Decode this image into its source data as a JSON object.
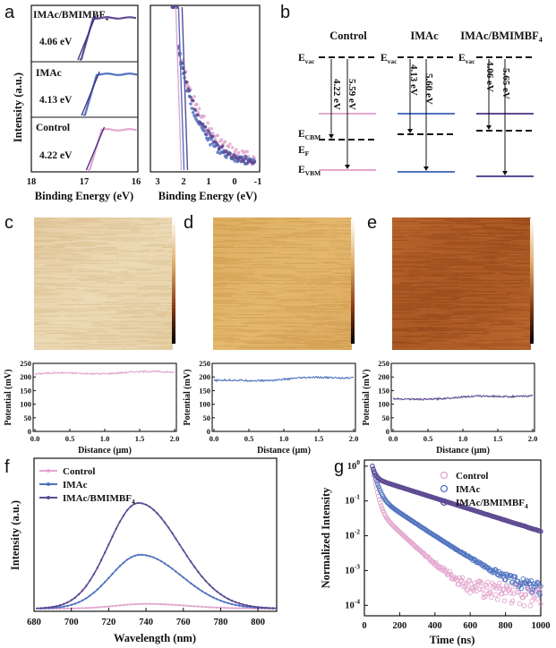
{
  "panels": {
    "a": "a",
    "b": "b",
    "c": "c",
    "d": "d",
    "e": "e",
    "f": "f",
    "g": "g"
  },
  "colors": {
    "control": "#e3a7cf",
    "imac": "#4f73bf",
    "imac_bmimbf4": "#5e4a92",
    "fit_line": "#3f2a80"
  },
  "chart_data": [
    {
      "id": "a_left",
      "type": "line",
      "xlabel": "Binding Energy (eV)",
      "ylabel": "Intensity (a.u.)",
      "xlim": [
        18,
        16
      ],
      "xticks": [
        "18",
        "17",
        "16"
      ],
      "series": [
        {
          "name": "IMAc/BMIMBF4",
          "label": "IMAc/BMIMBF",
          "sub": "4",
          "cutoff": "4.06 eV",
          "onset": 17.06
        },
        {
          "name": "IMAc",
          "label": "IMAc",
          "cutoff": "4.13 eV",
          "onset": 16.99
        },
        {
          "name": "Control",
          "label": "Control",
          "cutoff": "4.22 eV",
          "onset": 16.9
        }
      ]
    },
    {
      "id": "a_right",
      "type": "scatter",
      "xlabel": "Binding Energy (eV)",
      "xlim": [
        3,
        -1
      ],
      "xticks": [
        "3",
        "2",
        "1",
        "0",
        "-1"
      ]
    },
    {
      "id": "b",
      "type": "diagram",
      "columns": [
        {
          "name": "Control",
          "evac": "E",
          "evac_sub": "vac",
          "wf": "4.22 eV",
          "vb": "5.59 eV"
        },
        {
          "name": "IMAc",
          "evac": "E",
          "evac_sub": "vac",
          "wf": "4.13 eV",
          "vb": "5.60 eV"
        },
        {
          "name": "IMAc/BMIMBF",
          "name_sub": "4",
          "evac": "E",
          "evac_sub": "vac",
          "wf": "4.06 eV",
          "vb": "5.65 eV"
        }
      ],
      "labels": {
        "ecbm": "E",
        "ecbm_sub": "CBM",
        "ef": "E",
        "ef_sub": "F",
        "evbm": "E",
        "evbm_sub": "VBM"
      }
    },
    {
      "id": "c",
      "type": "line",
      "xlabel": "Distance (μm)",
      "ylabel": "Potential (mV)",
      "xlim": [
        0,
        2
      ],
      "ylim": [
        0,
        250
      ],
      "mean": 215,
      "series": "Control",
      "xticks": [
        "0.0",
        "0.5",
        "1.0",
        "1.5",
        "2.0"
      ],
      "yticks": [
        "0",
        "50",
        "100",
        "150",
        "200",
        "250"
      ]
    },
    {
      "id": "d",
      "type": "line",
      "xlabel": "Distance (μm)",
      "ylabel": "Potential (mV)",
      "xlim": [
        0,
        2
      ],
      "ylim": [
        0,
        250
      ],
      "mean": 192,
      "series": "IMAc",
      "xticks": [
        "0.0",
        "0.5",
        "1.0",
        "1.5",
        "2.0"
      ],
      "yticks": [
        "0",
        "50",
        "100",
        "150",
        "200",
        "250"
      ]
    },
    {
      "id": "e",
      "type": "line",
      "xlabel": "Distance (μm)",
      "ylabel": "Potential (mV)",
      "xlim": [
        0,
        2
      ],
      "ylim": [
        0,
        250
      ],
      "mean": 125,
      "series": "IMAc/BMIMBF4",
      "xticks": [
        "0.0",
        "0.5",
        "1.0",
        "1.5",
        "2.0"
      ],
      "yticks": [
        "0",
        "50",
        "100",
        "150",
        "200",
        "250"
      ]
    },
    {
      "id": "f",
      "type": "line",
      "xlabel": "Wavelength (nm)",
      "ylabel": "Intensity (a.u.)",
      "xlim": [
        680,
        810
      ],
      "xticks": [
        "680",
        "700",
        "720",
        "740",
        "760",
        "780",
        "800"
      ],
      "legend": "top-left",
      "series": [
        {
          "name": "Control",
          "label": "Control",
          "peak_x": 740,
          "peak_y": 0.045
        },
        {
          "name": "IMAc",
          "label": "IMAc",
          "peak_x": 737,
          "peak_y": 0.51
        },
        {
          "name": "IMAc/BMIMBF4",
          "label": "IMAc/BMIMBF",
          "sub": "4",
          "peak_x": 736,
          "peak_y": 1.0
        }
      ]
    },
    {
      "id": "g",
      "type": "scatter",
      "xlabel": "Time (ns)",
      "ylabel": "Normalized Intensity",
      "xlim": [
        0,
        1000
      ],
      "ylim": [
        5e-05,
        1.5
      ],
      "yscale": "log",
      "xticks": [
        "0",
        "200",
        "400",
        "600",
        "800",
        "1000"
      ],
      "legend": "top-right",
      "series": [
        {
          "name": "Control",
          "label": "Control",
          "tau1": 15,
          "tau2": 90,
          "a1": 0.93,
          "a2": 0.07,
          "floor": 0.00025
        },
        {
          "name": "IMAc",
          "label": "IMAc",
          "tau1": 20,
          "tau2": 130,
          "a1": 0.85,
          "a2": 0.15,
          "floor": 0.00022
        },
        {
          "name": "IMAc/BMIMBF4",
          "label": "IMAc/BMIMBF",
          "sub": "4",
          "tau1": 15,
          "tau2": 270,
          "a1": 0.55,
          "a2": 0.45,
          "floor": 0.0003
        }
      ]
    }
  ]
}
